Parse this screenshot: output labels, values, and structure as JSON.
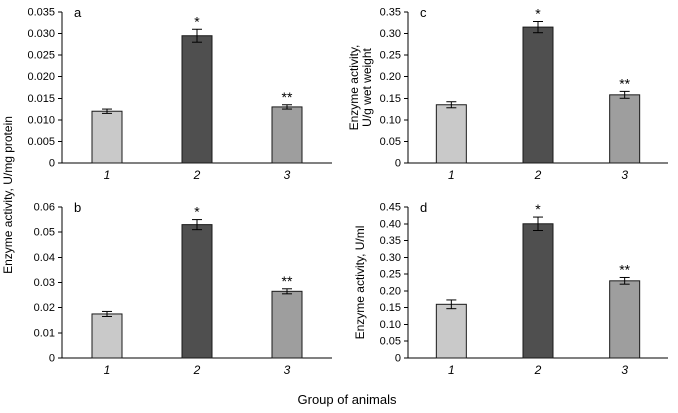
{
  "figure": {
    "left_ylabel": "Enzyme activity, U/mg protein",
    "xlabel": "Group of animals",
    "bar_colors": [
      "#c9c9c9",
      "#4f4f4f",
      "#9e9e9e"
    ],
    "bar_stroke": "#1a1a1a",
    "axis_color": "#000000",
    "background": "#ffffff"
  },
  "chart_data": [
    {
      "panel": "a",
      "type": "bar",
      "categories": [
        "1",
        "2",
        "3"
      ],
      "values": [
        0.012,
        0.0295,
        0.013
      ],
      "errors": [
        0.0005,
        0.0015,
        0.0005
      ],
      "sig_labels": [
        "",
        "*",
        "**"
      ],
      "ylabel": "",
      "ylim": [
        0,
        0.035
      ],
      "ytick_step": 0.005,
      "tick_decimals": 3,
      "grid": false,
      "legend": "none"
    },
    {
      "panel": "b",
      "type": "bar",
      "categories": [
        "1",
        "2",
        "3"
      ],
      "values": [
        0.0175,
        0.053,
        0.0265
      ],
      "errors": [
        0.001,
        0.002,
        0.001
      ],
      "sig_labels": [
        "",
        "*",
        "**"
      ],
      "ylabel": "",
      "ylim": [
        0,
        0.06
      ],
      "ytick_step": 0.01,
      "tick_decimals": 2,
      "grid": false,
      "legend": "none"
    },
    {
      "panel": "c",
      "type": "bar",
      "categories": [
        "1",
        "2",
        "3"
      ],
      "values": [
        0.135,
        0.315,
        0.158
      ],
      "errors": [
        0.007,
        0.013,
        0.008
      ],
      "sig_labels": [
        "",
        "*",
        "**"
      ],
      "ylabel": "Enzyme activity,\nU/g wet weight",
      "ylim": [
        0,
        0.35
      ],
      "ytick_step": 0.05,
      "tick_decimals": 2,
      "grid": false,
      "legend": "none"
    },
    {
      "panel": "d",
      "type": "bar",
      "categories": [
        "1",
        "2",
        "3"
      ],
      "values": [
        0.16,
        0.4,
        0.23
      ],
      "errors": [
        0.013,
        0.02,
        0.01
      ],
      "sig_labels": [
        "",
        "*",
        "**"
      ],
      "ylabel": "Enzyme activity, U/ml",
      "ylim": [
        0,
        0.45
      ],
      "ytick_step": 0.05,
      "tick_decimals": 2,
      "grid": false,
      "legend": "none"
    }
  ]
}
